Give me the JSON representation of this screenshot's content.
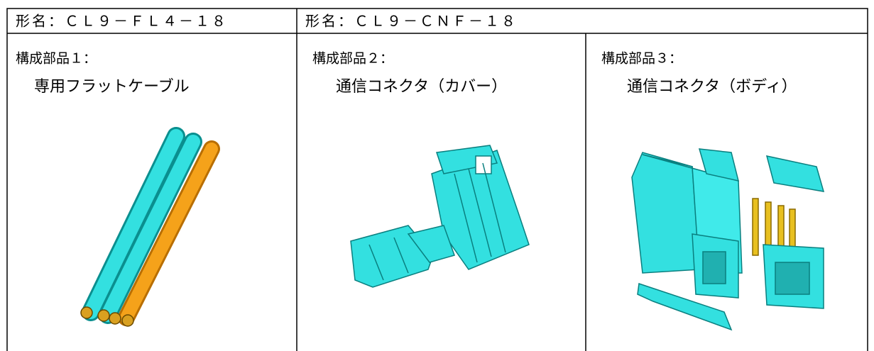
{
  "table": {
    "header": [
      "形名：ＣＬ９－ＦＬ４－１８",
      "形名：ＣＬ９－ＣＮＦ－１８"
    ],
    "parts": [
      {
        "label": "構成部品１：",
        "name": "専用フラットケーブル"
      },
      {
        "label": "構成部品２：",
        "name": "通信コネクタ（カバー）"
      },
      {
        "label": "構成部品３：",
        "name": "通信コネクタ（ボディ）"
      }
    ]
  }
}
